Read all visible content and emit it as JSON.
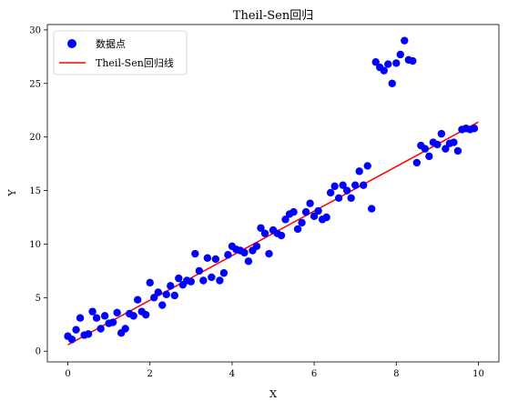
{
  "chart_data": {
    "type": "scatter",
    "title": "Theil-Sen回归",
    "xlabel": "X",
    "ylabel": "Y",
    "xlim": [
      -0.5,
      10.5
    ],
    "ylim": [
      -1,
      30.5
    ],
    "xticks": [
      0,
      2,
      4,
      6,
      8,
      10
    ],
    "yticks": [
      0,
      5,
      10,
      15,
      20,
      25,
      30
    ],
    "grid": false,
    "legend_position": "top-left",
    "series": [
      {
        "name": "数据点",
        "kind": "scatter",
        "color": "#0000ff",
        "points": [
          [
            0.0,
            1.4
          ],
          [
            0.1,
            1.1
          ],
          [
            0.2,
            2.0
          ],
          [
            0.3,
            3.1
          ],
          [
            0.4,
            1.5
          ],
          [
            0.5,
            1.6
          ],
          [
            0.6,
            3.7
          ],
          [
            0.7,
            3.1
          ],
          [
            0.8,
            2.1
          ],
          [
            0.9,
            3.3
          ],
          [
            1.0,
            2.6
          ],
          [
            1.1,
            2.7
          ],
          [
            1.2,
            3.6
          ],
          [
            1.3,
            1.7
          ],
          [
            1.4,
            2.1
          ],
          [
            1.5,
            3.5
          ],
          [
            1.6,
            3.3
          ],
          [
            1.7,
            4.8
          ],
          [
            1.8,
            3.7
          ],
          [
            1.9,
            3.4
          ],
          [
            2.0,
            6.4
          ],
          [
            2.1,
            5.0
          ],
          [
            2.2,
            5.5
          ],
          [
            2.3,
            4.3
          ],
          [
            2.4,
            5.3
          ],
          [
            2.5,
            6.1
          ],
          [
            2.6,
            5.2
          ],
          [
            2.7,
            6.8
          ],
          [
            2.8,
            6.2
          ],
          [
            2.9,
            6.6
          ],
          [
            3.0,
            6.5
          ],
          [
            3.1,
            9.1
          ],
          [
            3.2,
            7.5
          ],
          [
            3.3,
            6.6
          ],
          [
            3.4,
            8.7
          ],
          [
            3.5,
            6.9
          ],
          [
            3.6,
            8.6
          ],
          [
            3.7,
            6.6
          ],
          [
            3.8,
            7.3
          ],
          [
            3.9,
            9.0
          ],
          [
            4.0,
            9.8
          ],
          [
            4.1,
            9.5
          ],
          [
            4.2,
            9.4
          ],
          [
            4.3,
            9.2
          ],
          [
            4.4,
            8.4
          ],
          [
            4.5,
            9.4
          ],
          [
            4.6,
            9.8
          ],
          [
            4.7,
            11.5
          ],
          [
            4.8,
            11.0
          ],
          [
            4.9,
            9.1
          ],
          [
            5.0,
            11.3
          ],
          [
            5.1,
            11.0
          ],
          [
            5.2,
            10.8
          ],
          [
            5.3,
            12.3
          ],
          [
            5.4,
            12.8
          ],
          [
            5.5,
            13.0
          ],
          [
            5.6,
            11.4
          ],
          [
            5.7,
            12.0
          ],
          [
            5.8,
            13.0
          ],
          [
            5.9,
            13.8
          ],
          [
            6.0,
            12.6
          ],
          [
            6.1,
            13.1
          ],
          [
            6.2,
            12.3
          ],
          [
            6.3,
            12.5
          ],
          [
            6.4,
            14.8
          ],
          [
            6.5,
            15.4
          ],
          [
            6.6,
            14.3
          ],
          [
            6.7,
            15.5
          ],
          [
            6.8,
            15.0
          ],
          [
            6.9,
            14.3
          ],
          [
            7.0,
            15.5
          ],
          [
            7.1,
            16.8
          ],
          [
            7.2,
            15.5
          ],
          [
            7.3,
            17.3
          ],
          [
            7.4,
            13.3
          ],
          [
            7.5,
            27.0
          ],
          [
            7.6,
            26.5
          ],
          [
            7.7,
            26.2
          ],
          [
            7.8,
            26.8
          ],
          [
            7.9,
            25.0
          ],
          [
            8.0,
            26.9
          ],
          [
            8.1,
            27.7
          ],
          [
            8.2,
            29.0
          ],
          [
            8.3,
            27.2
          ],
          [
            8.4,
            27.1
          ],
          [
            8.5,
            17.6
          ],
          [
            8.6,
            19.2
          ],
          [
            8.7,
            18.9
          ],
          [
            8.8,
            18.2
          ],
          [
            8.9,
            19.5
          ],
          [
            9.0,
            19.3
          ],
          [
            9.1,
            20.3
          ],
          [
            9.2,
            18.9
          ],
          [
            9.3,
            19.4
          ],
          [
            9.4,
            19.5
          ],
          [
            9.5,
            18.7
          ],
          [
            9.6,
            20.7
          ],
          [
            9.7,
            20.8
          ],
          [
            9.8,
            20.7
          ],
          [
            9.9,
            20.8
          ]
        ]
      },
      {
        "name": "Theil-Sen回归线",
        "kind": "line",
        "color": "#ff0000",
        "points": [
          [
            0.0,
            0.6
          ],
          [
            10.0,
            21.4
          ]
        ]
      }
    ]
  }
}
